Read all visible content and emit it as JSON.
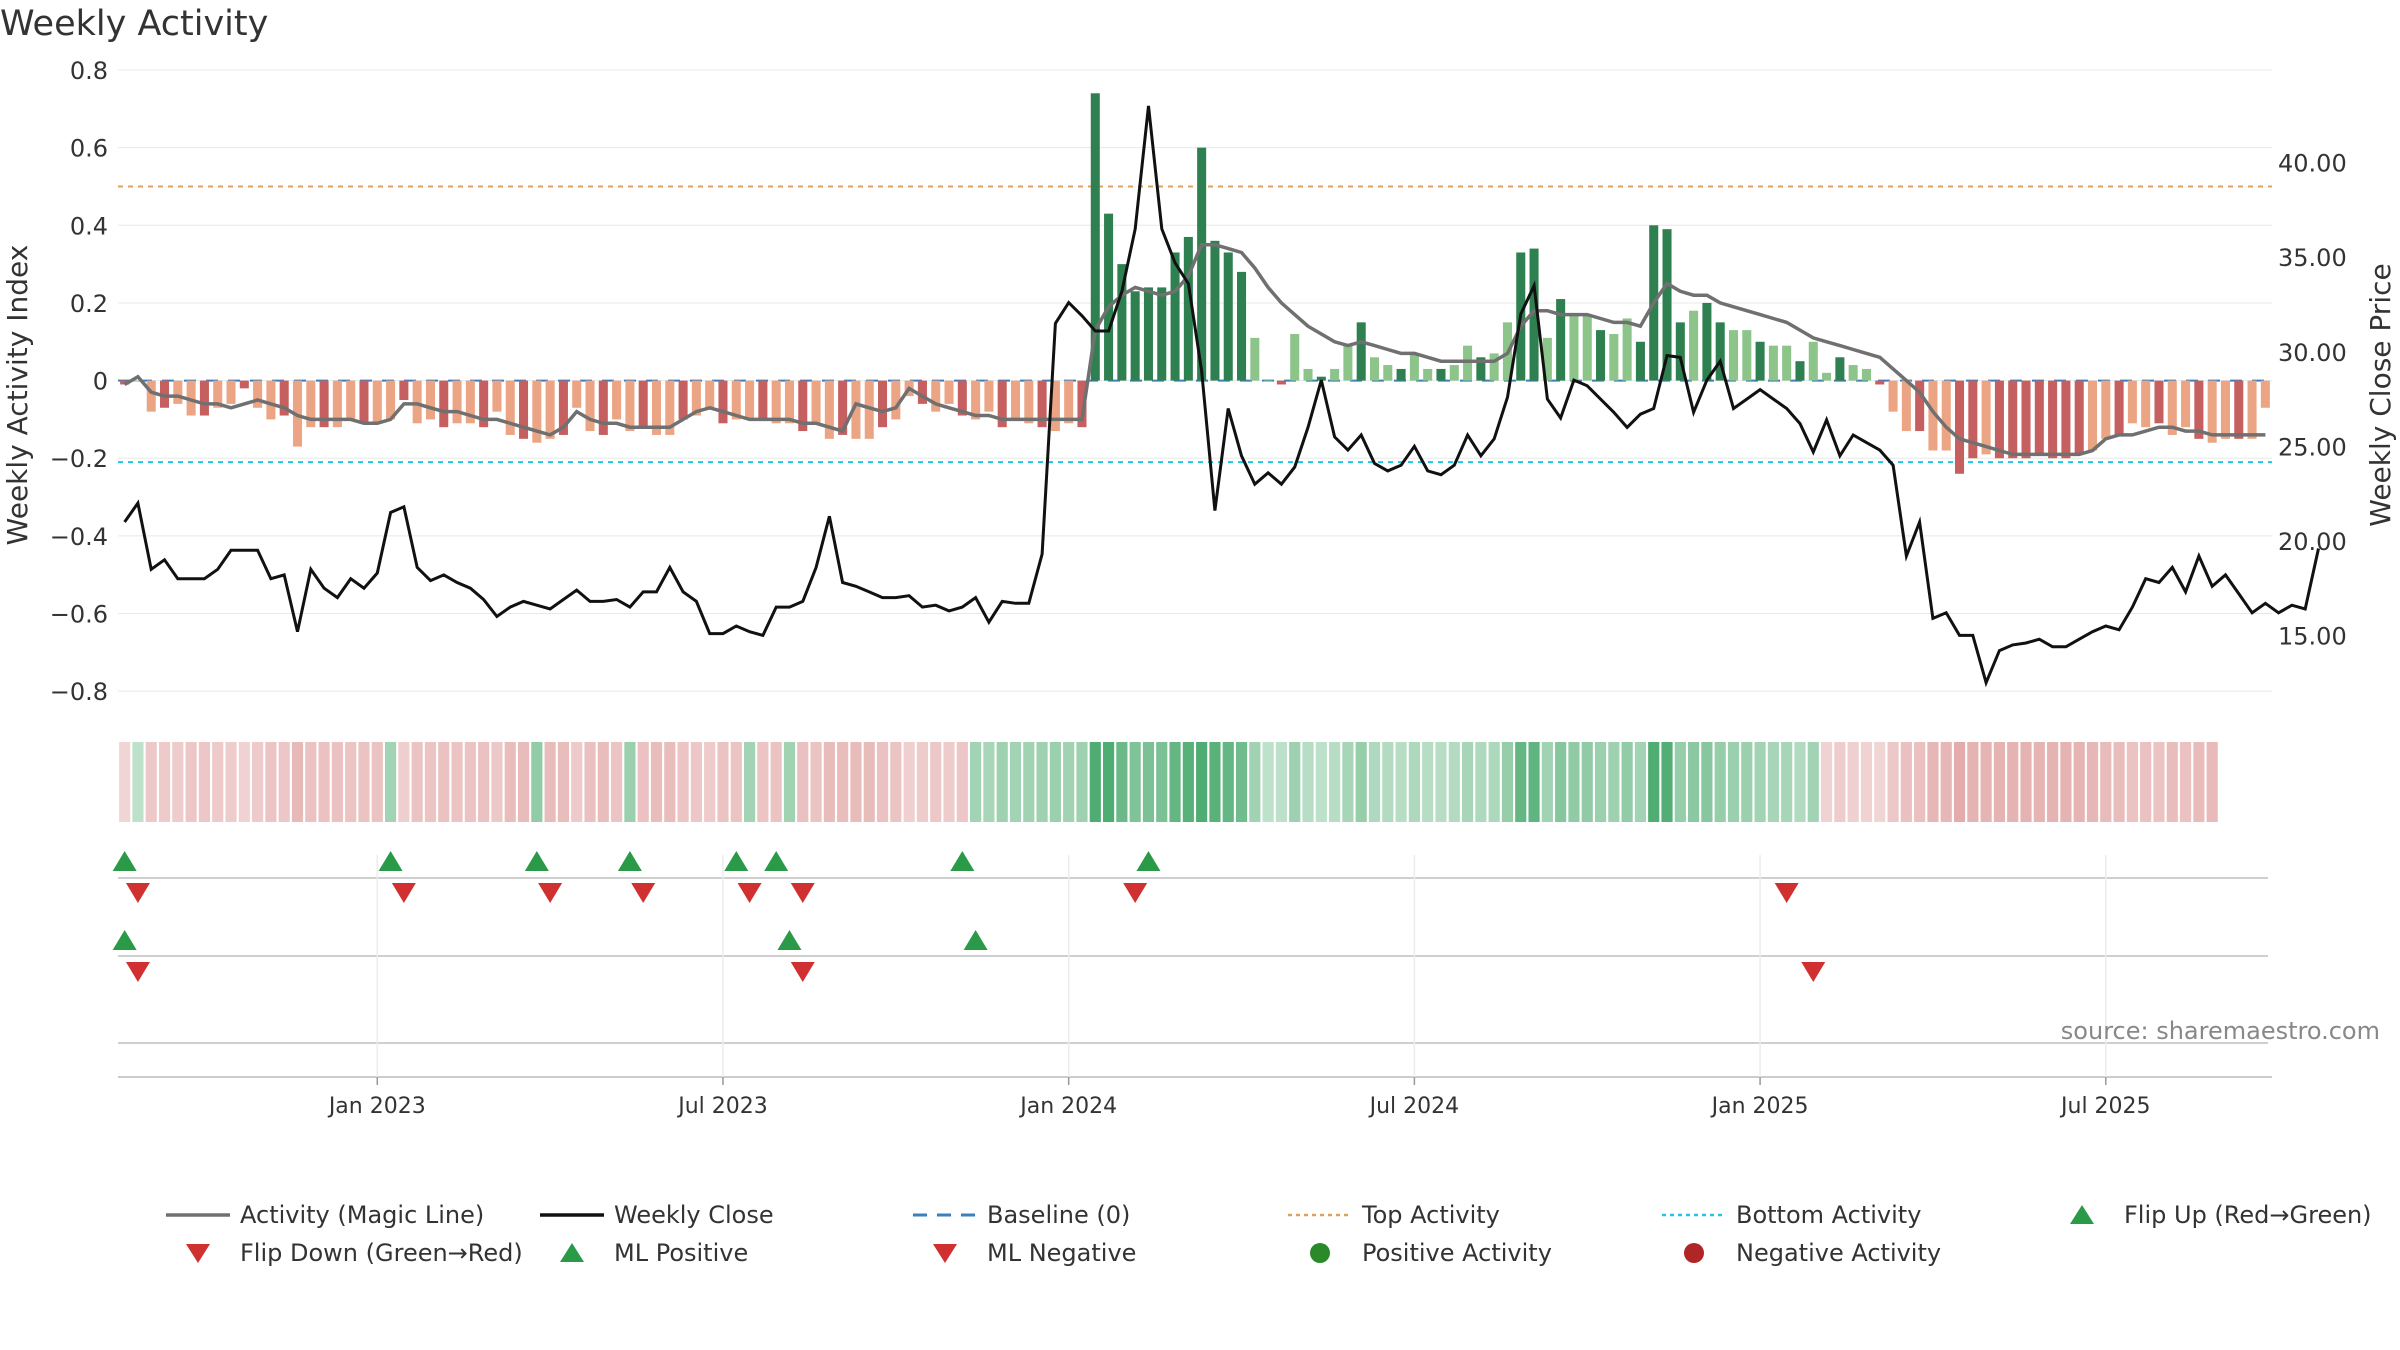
{
  "title": "Weekly Activity",
  "source": "source: sharemaestro.com",
  "chart_data": {
    "type": "bar",
    "title": "Weekly Activity",
    "ylabel": "Weekly Activity Index",
    "y2label": "Weekly Close Price",
    "ylim": [
      -0.9,
      0.8
    ],
    "y2lim": [
      10,
      44.9
    ],
    "yticks": [
      0.8,
      0.6,
      0.4,
      0.2,
      0,
      -0.2,
      -0.4,
      -0.6,
      -0.8
    ],
    "yticklabels": [
      "0.8",
      "0.6",
      "0.4",
      "0.2",
      "0",
      "−0.2",
      "−0.4",
      "−0.6",
      "−0.8"
    ],
    "y2ticks": [
      40,
      35,
      30,
      25,
      20,
      15
    ],
    "y2ticklabels": [
      "40.00",
      "35.00",
      "30.00",
      "25.00",
      "20.00",
      "15.00"
    ],
    "xtick_index": [
      19,
      45,
      71,
      97,
      123,
      149
    ],
    "xticklabels": [
      "Jan 2023",
      "Jul 2023",
      "Jan 2024",
      "Jul 2024",
      "Jan 2025",
      "Jul 2025"
    ],
    "top_activity": 0.5,
    "bottom_activity": -0.21,
    "baseline": 0,
    "activity": [
      -0.01,
      0.0,
      -0.08,
      -0.07,
      -0.06,
      -0.09,
      -0.09,
      -0.07,
      -0.06,
      -0.02,
      -0.07,
      -0.1,
      -0.09,
      -0.17,
      -0.12,
      -0.12,
      -0.12,
      -0.1,
      -0.11,
      -0.11,
      -0.1,
      -0.05,
      -0.11,
      -0.1,
      -0.12,
      -0.11,
      -0.11,
      -0.12,
      -0.08,
      -0.14,
      -0.15,
      -0.16,
      -0.15,
      -0.14,
      -0.07,
      -0.13,
      -0.14,
      -0.1,
      -0.13,
      -0.12,
      -0.14,
      -0.14,
      -0.1,
      -0.09,
      -0.07,
      -0.11,
      -0.1,
      -0.1,
      -0.1,
      -0.11,
      -0.11,
      -0.13,
      -0.11,
      -0.15,
      -0.14,
      -0.15,
      -0.15,
      -0.12,
      -0.1,
      -0.04,
      -0.06,
      -0.08,
      -0.06,
      -0.09,
      -0.1,
      -0.08,
      -0.12,
      -0.1,
      -0.11,
      -0.12,
      -0.13,
      -0.11,
      -0.12,
      0.74,
      0.43,
      0.3,
      0.23,
      0.24,
      0.24,
      0.33,
      0.37,
      0.6,
      0.36,
      0.33,
      0.28,
      0.11,
      0.0,
      -0.01,
      0.12,
      0.03,
      0.01,
      0.03,
      0.09,
      0.15,
      0.06,
      0.04,
      0.03,
      0.07,
      0.03,
      0.03,
      0.04,
      0.09,
      0.06,
      0.07,
      0.15,
      0.33,
      0.34,
      0.11,
      0.21,
      0.17,
      0.17,
      0.13,
      0.12,
      0.16,
      0.1,
      0.4,
      0.39,
      0.15,
      0.18,
      0.2,
      0.15,
      0.13,
      0.13,
      0.1,
      0.09,
      0.09,
      0.05,
      0.1,
      0.02,
      0.06,
      0.04,
      0.03,
      -0.01,
      -0.08,
      -0.13,
      -0.13,
      -0.18,
      -0.18,
      -0.24,
      -0.2,
      -0.19,
      -0.2,
      -0.2,
      -0.2,
      -0.19,
      -0.2,
      -0.2,
      -0.19,
      -0.18,
      -0.15,
      -0.14,
      -0.11,
      -0.12,
      -0.11,
      -0.14,
      -0.12,
      -0.15,
      -0.16,
      -0.15,
      -0.15,
      -0.15,
      -0.07
    ],
    "magic_line": [
      -0.01,
      0.01,
      -0.03,
      -0.04,
      -0.04,
      -0.05,
      -0.06,
      -0.06,
      -0.07,
      -0.06,
      -0.05,
      -0.06,
      -0.07,
      -0.09,
      -0.1,
      -0.1,
      -0.1,
      -0.1,
      -0.11,
      -0.11,
      -0.1,
      -0.06,
      -0.06,
      -0.07,
      -0.08,
      -0.08,
      -0.09,
      -0.1,
      -0.1,
      -0.11,
      -0.12,
      -0.13,
      -0.14,
      -0.12,
      -0.08,
      -0.1,
      -0.11,
      -0.11,
      -0.12,
      -0.12,
      -0.12,
      -0.12,
      -0.1,
      -0.08,
      -0.07,
      -0.08,
      -0.09,
      -0.1,
      -0.1,
      -0.1,
      -0.1,
      -0.11,
      -0.11,
      -0.12,
      -0.13,
      -0.06,
      -0.07,
      -0.08,
      -0.07,
      -0.02,
      -0.04,
      -0.06,
      -0.07,
      -0.08,
      -0.09,
      -0.09,
      -0.1,
      -0.1,
      -0.1,
      -0.1,
      -0.1,
      -0.1,
      -0.1,
      0.13,
      0.19,
      0.22,
      0.24,
      0.23,
      0.22,
      0.23,
      0.27,
      0.35,
      0.35,
      0.34,
      0.33,
      0.29,
      0.24,
      0.2,
      0.17,
      0.14,
      0.12,
      0.1,
      0.09,
      0.1,
      0.09,
      0.08,
      0.07,
      0.07,
      0.06,
      0.05,
      0.05,
      0.05,
      0.05,
      0.05,
      0.07,
      0.14,
      0.18,
      0.18,
      0.17,
      0.17,
      0.17,
      0.16,
      0.15,
      0.15,
      0.14,
      0.2,
      0.25,
      0.23,
      0.22,
      0.22,
      0.2,
      0.19,
      0.18,
      0.17,
      0.16,
      0.15,
      0.13,
      0.11,
      0.1,
      0.09,
      0.08,
      0.07,
      0.06,
      0.03,
      0.0,
      -0.03,
      -0.08,
      -0.12,
      -0.15,
      -0.16,
      -0.17,
      -0.18,
      -0.19,
      -0.19,
      -0.19,
      -0.19,
      -0.19,
      -0.19,
      -0.18,
      -0.15,
      -0.14,
      -0.14,
      -0.13,
      -0.12,
      -0.12,
      -0.13,
      -0.13,
      -0.14,
      -0.14,
      -0.14,
      -0.14,
      -0.14
    ],
    "weekly_close": [
      21.0,
      22.0,
      18.5,
      19.0,
      18.0,
      18.0,
      18.0,
      18.5,
      19.5,
      19.5,
      19.5,
      18.0,
      18.2,
      15.2,
      18.5,
      17.5,
      17.0,
      18.0,
      17.5,
      18.3,
      21.5,
      21.8,
      18.6,
      17.9,
      18.2,
      17.8,
      17.5,
      16.9,
      16.0,
      16.5,
      16.8,
      16.6,
      16.4,
      16.9,
      17.4,
      16.8,
      16.8,
      16.9,
      16.5,
      17.3,
      17.3,
      18.6,
      17.3,
      16.8,
      15.1,
      15.1,
      15.5,
      15.2,
      15.0,
      16.5,
      16.5,
      16.8,
      18.6,
      21.3,
      17.8,
      17.6,
      17.3,
      17.0,
      17.0,
      17.1,
      16.5,
      16.6,
      16.3,
      16.5,
      17.0,
      15.7,
      16.8,
      16.7,
      16.7,
      19.3,
      31.5,
      32.6,
      31.9,
      31.1,
      31.1,
      33.2,
      36.5,
      43.0,
      36.5,
      34.7,
      33.6,
      29.0,
      21.6,
      27.0,
      24.5,
      23.0,
      23.6,
      23.0,
      23.9,
      26.0,
      28.5,
      25.5,
      24.8,
      25.6,
      24.1,
      23.7,
      24.0,
      25.0,
      23.7,
      23.5,
      24.0,
      25.6,
      24.5,
      25.4,
      27.6,
      32.0,
      33.5,
      27.5,
      26.5,
      28.5,
      28.2,
      27.5,
      26.8,
      26.0,
      26.7,
      27.0,
      29.8,
      29.7,
      26.8,
      28.5,
      29.5,
      27.0,
      27.5,
      28.0,
      27.5,
      27.0,
      26.2,
      24.7,
      26.4,
      24.5,
      25.6,
      25.2,
      24.8,
      24.0,
      19.2,
      21.0,
      15.9,
      16.2,
      15.0,
      15.0,
      12.5,
      14.2,
      14.5,
      14.6,
      14.8,
      14.4,
      14.4,
      14.8,
      15.2,
      15.5,
      15.3,
      16.5,
      18.0,
      17.8,
      18.6,
      17.3,
      19.2,
      17.6,
      18.2,
      17.2,
      16.2,
      16.7,
      16.2,
      16.6,
      16.4,
      19.6
    ],
    "regime_start": 1,
    "regime": [
      0,
      1,
      0,
      0,
      0,
      0,
      0,
      0,
      0,
      0,
      0,
      0,
      0,
      0,
      0,
      0,
      0,
      0,
      0,
      0,
      1,
      0,
      0,
      0,
      0,
      0,
      0,
      0,
      0,
      0,
      0,
      1,
      0,
      0,
      0,
      0,
      0,
      0,
      1,
      0,
      0,
      0,
      0,
      0,
      0,
      0,
      0,
      1,
      0,
      0,
      1,
      0,
      0,
      0,
      0,
      0,
      0,
      0,
      0,
      0,
      0,
      0,
      0,
      0,
      1,
      1,
      1,
      1,
      1,
      1,
      1,
      1,
      1,
      1,
      1,
      1,
      1,
      1,
      1,
      1,
      1,
      1,
      1,
      1,
      1,
      1,
      1,
      1,
      1,
      1,
      1,
      1,
      1,
      1,
      1,
      1,
      1,
      1,
      1,
      1,
      1,
      1,
      1,
      1,
      1,
      1,
      1,
      1,
      1,
      1,
      1,
      1,
      1,
      1,
      1,
      1,
      1,
      1,
      1,
      1,
      1,
      1,
      1,
      1,
      1,
      1,
      1,
      1,
      0,
      0,
      0,
      0,
      0,
      0,
      0,
      0,
      0,
      0,
      0,
      0,
      0,
      0,
      0,
      0,
      0,
      0,
      0,
      0,
      0,
      0,
      0,
      0,
      0,
      0,
      0,
      0,
      0,
      0
    ],
    "flip_up_index": [
      0,
      20,
      31,
      38,
      46,
      49,
      63,
      77
    ],
    "flip_down_index": [
      1,
      21,
      32,
      39,
      47,
      51,
      76,
      125
    ],
    "ml_positive_index": [
      0,
      50,
      64
    ],
    "ml_negative_index": [
      1,
      51,
      127
    ],
    "legend": [
      {
        "label": "Activity (Magic Line)",
        "symbol": "line",
        "color": "#707070"
      },
      {
        "label": "Weekly Close",
        "symbol": "line",
        "color": "#111111"
      },
      {
        "label": "Baseline (0)",
        "symbol": "dash",
        "color": "#3b7fbf"
      },
      {
        "label": "Top Activity",
        "symbol": "dot",
        "color": "#e0a060"
      },
      {
        "label": "Bottom Activity",
        "symbol": "dot",
        "color": "#22c6e0"
      },
      {
        "label": "Flip Up (Red→Green)",
        "symbol": "tri-up",
        "color": "#2a9a48"
      },
      {
        "label": "Flip Down (Green→Red)",
        "symbol": "tri-down",
        "color": "#d03030"
      },
      {
        "label": "ML Positive",
        "symbol": "tri-up",
        "color": "#2a9a48"
      },
      {
        "label": "ML Negative",
        "symbol": "tri-down",
        "color": "#d03030"
      },
      {
        "label": "Positive Activity",
        "symbol": "circle",
        "color": "#2a8a2a"
      },
      {
        "label": "Negative Activity",
        "symbol": "circle",
        "color": "#b02525"
      }
    ],
    "colors": {
      "pos_strong": "#2f8050",
      "pos_light": "#8cc48a",
      "neg_strong": "#c65f5f",
      "neg_light": "#eba484",
      "axis_text": "#333333",
      "grid": "#e8e8e8",
      "regime_pos": "#46a86a",
      "regime_neg": "#d98a8a"
    }
  }
}
